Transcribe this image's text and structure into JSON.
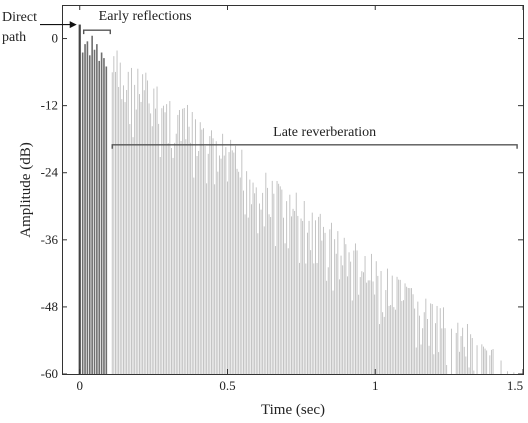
{
  "chart_data": {
    "type": "bar",
    "title": "",
    "xlabel": "Time (sec)",
    "ylabel": "Amplitude (dB)",
    "xlim": [
      -0.06,
      1.5
    ],
    "ylim": [
      -60,
      6
    ],
    "x_ticks": [
      0,
      0.5,
      1,
      1.5
    ],
    "x_tick_labels": [
      "0",
      "0.5",
      "1",
      "1.5"
    ],
    "y_ticks": [
      0,
      -12,
      -24,
      -36,
      -48,
      -60
    ],
    "y_tick_labels": [
      "0",
      "-12",
      "-24",
      "-36",
      "-48",
      "-60"
    ],
    "grid": false,
    "colors": {
      "direct_path": "#444444",
      "early_reflections": "#6e6e6e",
      "late_reverberation": "#bdbdbd"
    },
    "series": [
      {
        "name": "Direct path",
        "x": [
          0.0
        ],
        "values": [
          2.5
        ]
      },
      {
        "name": "Early reflections",
        "x": [
          0.01,
          0.018,
          0.026,
          0.034,
          0.042,
          0.05,
          0.058,
          0.066,
          0.074,
          0.082,
          0.09
        ],
        "values": [
          -2.5,
          -1.0,
          -0.5,
          -3.0,
          0.5,
          -2.0,
          -1.0,
          -4.0,
          -2.5,
          -3.5,
          -5.0
        ]
      },
      {
        "name": "Late reverberation",
        "x_start": 0.11,
        "x_end": 1.48,
        "start_level_db": -3,
        "end_level_db": -60,
        "note": "dense exponentially decaying impulses"
      }
    ],
    "annotations": [
      {
        "label": "Direct",
        "label2": "path",
        "x": 0.0,
        "y": 2.5
      },
      {
        "label": "Early reflections",
        "x_range": [
          0.01,
          0.1
        ],
        "y": 1.5
      },
      {
        "label": "Late reverberation",
        "x_range": [
          0.11,
          1.48
        ],
        "y": -19
      }
    ]
  }
}
